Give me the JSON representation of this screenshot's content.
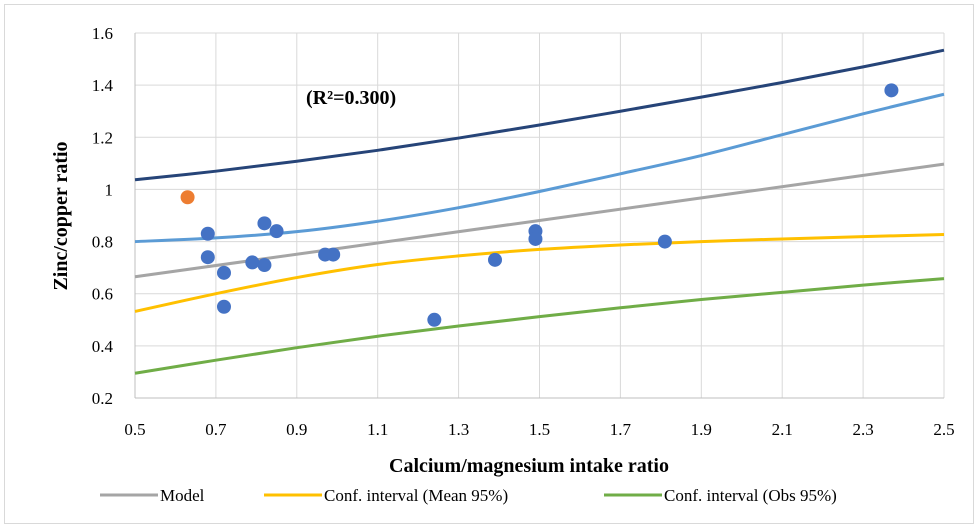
{
  "chart_data": {
    "type": "scatter",
    "xlabel": "Calcium/magnesium intake ratio",
    "ylabel": "Zinc/copper ratio",
    "xlim": [
      0.5,
      2.5
    ],
    "ylim": [
      0.2,
      1.6
    ],
    "xticks": [
      "0.5",
      "0.7",
      "0.9",
      "1.1",
      "1.3",
      "1.5",
      "1.7",
      "1.9",
      "2.1",
      "2.3",
      "2.5"
    ],
    "yticks": [
      "0.2",
      "0.4",
      "0.6",
      "0.8",
      "1",
      "1.2",
      "1.4",
      "1.6"
    ],
    "grid": true,
    "annotation": "(R²=0.300)",
    "points": [
      {
        "x": 0.68,
        "y": 0.83
      },
      {
        "x": 0.68,
        "y": 0.74
      },
      {
        "x": 0.72,
        "y": 0.68
      },
      {
        "x": 0.72,
        "y": 0.55
      },
      {
        "x": 0.79,
        "y": 0.72
      },
      {
        "x": 0.82,
        "y": 0.87
      },
      {
        "x": 0.82,
        "y": 0.71
      },
      {
        "x": 0.85,
        "y": 0.84
      },
      {
        "x": 0.97,
        "y": 0.75
      },
      {
        "x": 0.99,
        "y": 0.75
      },
      {
        "x": 1.24,
        "y": 0.5
      },
      {
        "x": 1.39,
        "y": 0.73
      },
      {
        "x": 1.49,
        "y": 0.84
      },
      {
        "x": 1.49,
        "y": 0.81
      },
      {
        "x": 1.81,
        "y": 0.8
      },
      {
        "x": 2.37,
        "y": 1.38
      }
    ],
    "outlier_points": [
      {
        "x": 0.63,
        "y": 0.97
      }
    ],
    "point_color": "#4472c4",
    "outlier_color": "#ed7d31",
    "series": [
      {
        "name": "Model",
        "color": "#a5a5a5",
        "x": [
          0.5,
          1.0,
          1.5,
          2.0,
          2.5
        ],
        "values": [
          0.665,
          0.773,
          0.881,
          0.989,
          1.097
        ]
      },
      {
        "name": "Conf. interval (Mean 95%)",
        "color": "#ffc000",
        "x": [
          0.5,
          0.7,
          0.9,
          1.1,
          1.3,
          1.5,
          1.7,
          1.9,
          2.1,
          2.3,
          2.5
        ],
        "values": [
          0.532,
          0.6,
          0.662,
          0.712,
          0.745,
          0.77,
          0.787,
          0.8,
          0.81,
          0.819,
          0.827
        ]
      },
      {
        "name": "",
        "color": "#5b9bd5",
        "x": [
          0.5,
          0.7,
          0.9,
          1.1,
          1.3,
          1.5,
          1.7,
          1.9,
          2.1,
          2.3,
          2.5
        ],
        "values": [
          0.8,
          0.814,
          0.838,
          0.878,
          0.93,
          0.992,
          1.06,
          1.13,
          1.21,
          1.29,
          1.365
        ]
      },
      {
        "name": "Conf. interval (Obs 95%)",
        "color": "#70ad47",
        "x": [
          0.5,
          0.7,
          0.9,
          1.1,
          1.3,
          1.5,
          1.7,
          1.9,
          2.1,
          2.3,
          2.5
        ],
        "values": [
          0.295,
          0.345,
          0.393,
          0.437,
          0.476,
          0.512,
          0.546,
          0.578,
          0.605,
          0.633,
          0.658
        ]
      },
      {
        "name": "",
        "color": "#264478",
        "x": [
          0.5,
          0.7,
          0.9,
          1.1,
          1.3,
          1.5,
          1.7,
          1.9,
          2.1,
          2.3,
          2.5
        ],
        "values": [
          1.037,
          1.07,
          1.108,
          1.15,
          1.197,
          1.247,
          1.3,
          1.354,
          1.41,
          1.47,
          1.534
        ]
      }
    ],
    "legend": {
      "placement": "bottom",
      "entries": [
        "Model",
        "Conf. interval (Mean 95%)",
        "Conf. interval (Obs 95%)"
      ]
    }
  }
}
